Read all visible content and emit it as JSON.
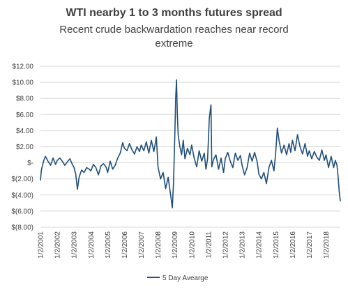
{
  "chart_data": {
    "type": "line",
    "title": "WTI nearby 1 to 3 months futures spread",
    "subtitle": "Recent crude backwardation reaches near record extreme",
    "xlabel": "",
    "ylabel": "",
    "ylim": [
      -8,
      12
    ],
    "y_ticks": [
      {
        "value": 12,
        "label": "$12.00"
      },
      {
        "value": 10,
        "label": "$10.00"
      },
      {
        "value": 8,
        "label": "$8.00"
      },
      {
        "value": 6,
        "label": "$6.00"
      },
      {
        "value": 4,
        "label": "$4.00"
      },
      {
        "value": 2,
        "label": "$2.00"
      },
      {
        "value": 0,
        "label": "$-"
      },
      {
        "value": -2,
        "label": "$(2.00)"
      },
      {
        "value": -4,
        "label": "$(4.00)"
      },
      {
        "value": -6,
        "label": "$(6.00)"
      },
      {
        "value": -8,
        "label": "$(8.00)"
      }
    ],
    "x_ticks": [
      "1/2/2001",
      "1/2/2002",
      "1/2/2003",
      "1/2/2004",
      "1/2/2005",
      "1/2/2006",
      "1/2/2007",
      "1/2/2008",
      "1/2/2009",
      "1/2/2010",
      "1/2/2011",
      "1/2/2012",
      "1/2/2013",
      "1/2/2014",
      "1/2/2015",
      "1/2/2016",
      "1/2/2017",
      "1/2/2018"
    ],
    "xlim": [
      2001.0,
      2018.85
    ],
    "grid": true,
    "legend_position": "bottom",
    "series": [
      {
        "name": "5 Day Avearge",
        "color": "#1f4e79",
        "x": [
          2001.0,
          2001.05,
          2001.1,
          2001.2,
          2001.3,
          2001.45,
          2001.6,
          2001.75,
          2001.9,
          2002.0,
          2002.15,
          2002.3,
          2002.45,
          2002.6,
          2002.75,
          2002.9,
          2003.0,
          2003.1,
          2003.2,
          2003.3,
          2003.45,
          2003.6,
          2003.75,
          2003.9,
          2004.0,
          2004.15,
          2004.3,
          2004.45,
          2004.6,
          2004.75,
          2004.9,
          2005.0,
          2005.15,
          2005.3,
          2005.45,
          2005.6,
          2005.75,
          2005.9,
          2006.0,
          2006.15,
          2006.3,
          2006.45,
          2006.6,
          2006.75,
          2006.9,
          2007.0,
          2007.15,
          2007.3,
          2007.45,
          2007.6,
          2007.75,
          2007.9,
          2008.0,
          2008.15,
          2008.3,
          2008.45,
          2008.6,
          2008.75,
          2008.85,
          2008.92,
          2009.0,
          2009.05,
          2009.1,
          2009.15,
          2009.2,
          2009.3,
          2009.4,
          2009.5,
          2009.6,
          2009.75,
          2009.9,
          2010.0,
          2010.15,
          2010.3,
          2010.45,
          2010.6,
          2010.75,
          2010.85,
          2010.95,
          2011.05,
          2011.15,
          2011.2,
          2011.3,
          2011.45,
          2011.6,
          2011.75,
          2011.9,
          2012.0,
          2012.15,
          2012.3,
          2012.45,
          2012.6,
          2012.75,
          2012.9,
          2013.0,
          2013.15,
          2013.3,
          2013.45,
          2013.6,
          2013.75,
          2013.9,
          2014.0,
          2014.15,
          2014.3,
          2014.45,
          2014.6,
          2014.75,
          2014.9,
          2015.0,
          2015.1,
          2015.2,
          2015.35,
          2015.5,
          2015.65,
          2015.8,
          2015.9,
          2016.0,
          2016.15,
          2016.3,
          2016.45,
          2016.6,
          2016.75,
          2016.9,
          2017.0,
          2017.15,
          2017.3,
          2017.45,
          2017.6,
          2017.75,
          2017.9,
          2018.0,
          2018.15,
          2018.3,
          2018.45,
          2018.55,
          2018.65,
          2018.72,
          2018.78,
          2018.82,
          2018.85
        ],
        "values": [
          -2.2,
          -1.0,
          -0.5,
          0.3,
          0.8,
          0.2,
          -0.3,
          0.6,
          -0.2,
          0.3,
          0.6,
          0.2,
          -0.3,
          0.1,
          0.5,
          -0.2,
          -0.6,
          -1.4,
          -3.3,
          -1.8,
          -0.9,
          -1.2,
          -0.6,
          -0.8,
          -1.0,
          -0.2,
          -0.6,
          -1.5,
          -0.4,
          -0.1,
          -0.5,
          -1.2,
          0.2,
          -0.8,
          -0.3,
          0.6,
          1.2,
          2.5,
          1.8,
          1.5,
          2.4,
          1.6,
          1.1,
          2.0,
          1.4,
          2.2,
          1.5,
          2.6,
          1.2,
          2.8,
          1.4,
          3.2,
          -0.5,
          -2.0,
          -1.2,
          -3.2,
          -1.8,
          -4.0,
          -5.6,
          -2.5,
          3.5,
          8.0,
          10.3,
          6.0,
          3.5,
          2.0,
          1.0,
          2.8,
          0.5,
          1.8,
          1.0,
          2.2,
          0.6,
          -0.5,
          1.5,
          0.2,
          1.2,
          -0.8,
          0.5,
          5.5,
          7.2,
          -0.5,
          0.4,
          1.0,
          -0.8,
          0.6,
          -1.2,
          0.5,
          1.3,
          0.2,
          -0.6,
          1.2,
          0.3,
          0.9,
          -0.3,
          -1.5,
          -0.6,
          1.2,
          0.2,
          1.3,
          0.1,
          -1.4,
          -2.0,
          -1.2,
          -2.6,
          -0.6,
          0.3,
          -1.0,
          1.2,
          4.3,
          2.8,
          1.2,
          2.2,
          1.0,
          2.4,
          1.3,
          2.8,
          1.5,
          3.5,
          2.0,
          1.1,
          2.4,
          0.8,
          1.5,
          0.5,
          1.4,
          0.7,
          0.3,
          1.6,
          0.3,
          1.0,
          -0.6,
          0.8,
          -0.6,
          0.3,
          -0.3,
          -1.8,
          -3.5,
          -4.2,
          -4.8
        ]
      }
    ]
  }
}
